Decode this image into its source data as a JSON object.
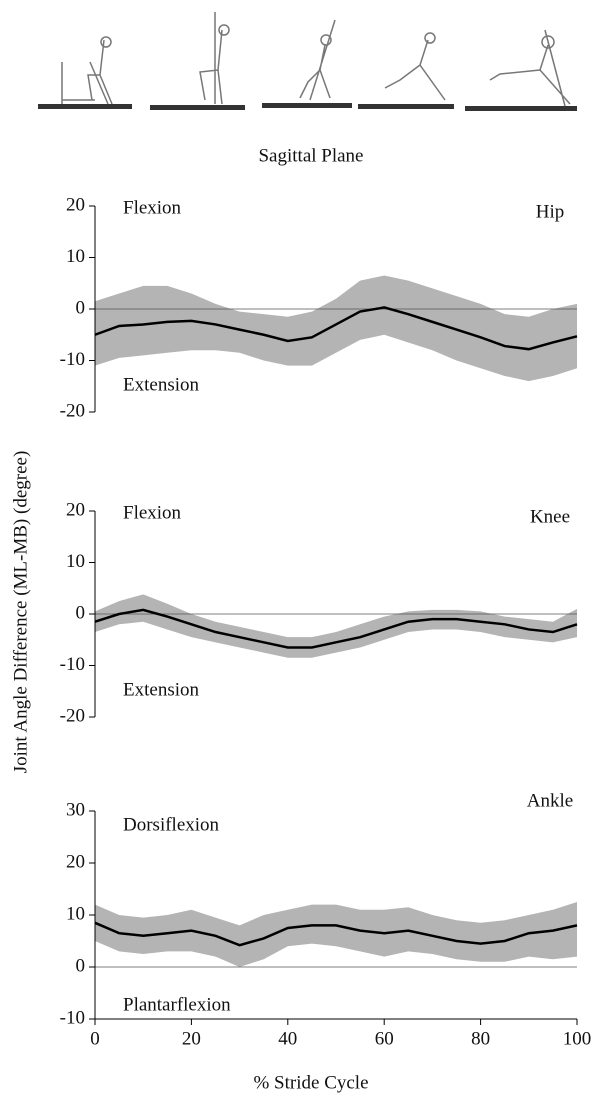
{
  "figure": {
    "title": "Sagittal Plane",
    "xlabel": "% Stride Cycle",
    "ylabel": "Joint Angle Difference (ML-MB) (degree)"
  },
  "chart_data": [
    {
      "type": "line",
      "annotations": {
        "joint": "Hip",
        "upper": "Flexion",
        "lower": "Extension"
      },
      "x": [
        0,
        5,
        10,
        15,
        20,
        25,
        30,
        35,
        40,
        45,
        50,
        55,
        60,
        65,
        70,
        75,
        80,
        85,
        90,
        95,
        100
      ],
      "values": [
        -5,
        -3.3,
        -3,
        -2.5,
        -2.3,
        -3,
        -4,
        -5,
        -6.2,
        -5.5,
        -3,
        -0.5,
        0.3,
        -1,
        -2.5,
        -4,
        -5.5,
        -7.2,
        -7.8,
        -6.5,
        -5.3
      ],
      "band_upper": [
        1.5,
        3,
        4.5,
        4.5,
        3,
        1,
        -0.5,
        -1,
        -1.5,
        -0.5,
        2,
        5.5,
        6.5,
        5.5,
        4,
        2.5,
        1,
        -1,
        -1.5,
        0,
        1
      ],
      "band_lower": [
        -11,
        -9.5,
        -9,
        -8.5,
        -8,
        -8,
        -8.5,
        -10,
        -11,
        -11,
        -8.5,
        -6,
        -5,
        -6.5,
        -8,
        -10,
        -11.5,
        -13,
        -14,
        -13,
        -11.5
      ],
      "color": "#000000",
      "band_color": "#b4b4b4",
      "reference_line": 0,
      "xlim": [
        0,
        100
      ],
      "ylim": [
        -20,
        20
      ],
      "yticks": [
        -20,
        -10,
        0,
        10,
        20
      ]
    },
    {
      "type": "line",
      "annotations": {
        "joint": "Knee",
        "upper": "Flexion",
        "lower": "Extension"
      },
      "x": [
        0,
        5,
        10,
        15,
        20,
        25,
        30,
        35,
        40,
        45,
        50,
        55,
        60,
        65,
        70,
        75,
        80,
        85,
        90,
        95,
        100
      ],
      "values": [
        -1.5,
        0,
        0.8,
        -0.5,
        -2,
        -3.5,
        -4.5,
        -5.5,
        -6.5,
        -6.5,
        -5.5,
        -4.5,
        -3,
        -1.5,
        -1,
        -1,
        -1.5,
        -2,
        -3,
        -3.5,
        -2
      ],
      "band_upper": [
        0.5,
        2.5,
        3.8,
        2,
        0,
        -1.5,
        -2.5,
        -3.5,
        -4.5,
        -4.5,
        -3.5,
        -2,
        -0.5,
        0.5,
        0.8,
        0.8,
        0.5,
        -0.5,
        -1,
        -1.5,
        1
      ],
      "band_lower": [
        -3.5,
        -2,
        -1.5,
        -3,
        -4.5,
        -5.5,
        -6.5,
        -7.5,
        -8.5,
        -8.5,
        -7.5,
        -6.5,
        -5,
        -3.5,
        -3,
        -3,
        -3.5,
        -4.5,
        -5,
        -5.5,
        -4.5
      ],
      "color": "#000000",
      "band_color": "#b4b4b4",
      "reference_line": 0,
      "xlim": [
        0,
        100
      ],
      "ylim": [
        -20,
        20
      ],
      "yticks": [
        -20,
        -10,
        0,
        10,
        20
      ]
    },
    {
      "type": "line",
      "annotations": {
        "joint": "Ankle",
        "upper": "Dorsiflexion",
        "lower": "Plantarflexion"
      },
      "x": [
        0,
        5,
        10,
        15,
        20,
        25,
        30,
        35,
        40,
        45,
        50,
        55,
        60,
        65,
        70,
        75,
        80,
        85,
        90,
        95,
        100
      ],
      "values": [
        8.5,
        6.5,
        6,
        6.5,
        7,
        6,
        4.2,
        5.5,
        7.5,
        8,
        8,
        7,
        6.5,
        7,
        6,
        5,
        4.5,
        5,
        6.5,
        7,
        8
      ],
      "band_upper": [
        12,
        10,
        9.5,
        10,
        11,
        9.5,
        8,
        10,
        11,
        12,
        12,
        11,
        11,
        11.5,
        10,
        9,
        8.5,
        9,
        10,
        11,
        12.5
      ],
      "band_lower": [
        5,
        3,
        2.5,
        3,
        3,
        2,
        0,
        1.5,
        4,
        4.5,
        4,
        3,
        2,
        3,
        2.5,
        1.5,
        1,
        1,
        2,
        1.5,
        2
      ],
      "color": "#000000",
      "band_color": "#b4b4b4",
      "reference_line": 0,
      "xlim": [
        0,
        100
      ],
      "ylim": [
        -10,
        30
      ],
      "yticks": [
        -10,
        0,
        10,
        20,
        30
      ],
      "xticks": [
        0,
        20,
        40,
        60,
        80,
        100
      ]
    }
  ]
}
